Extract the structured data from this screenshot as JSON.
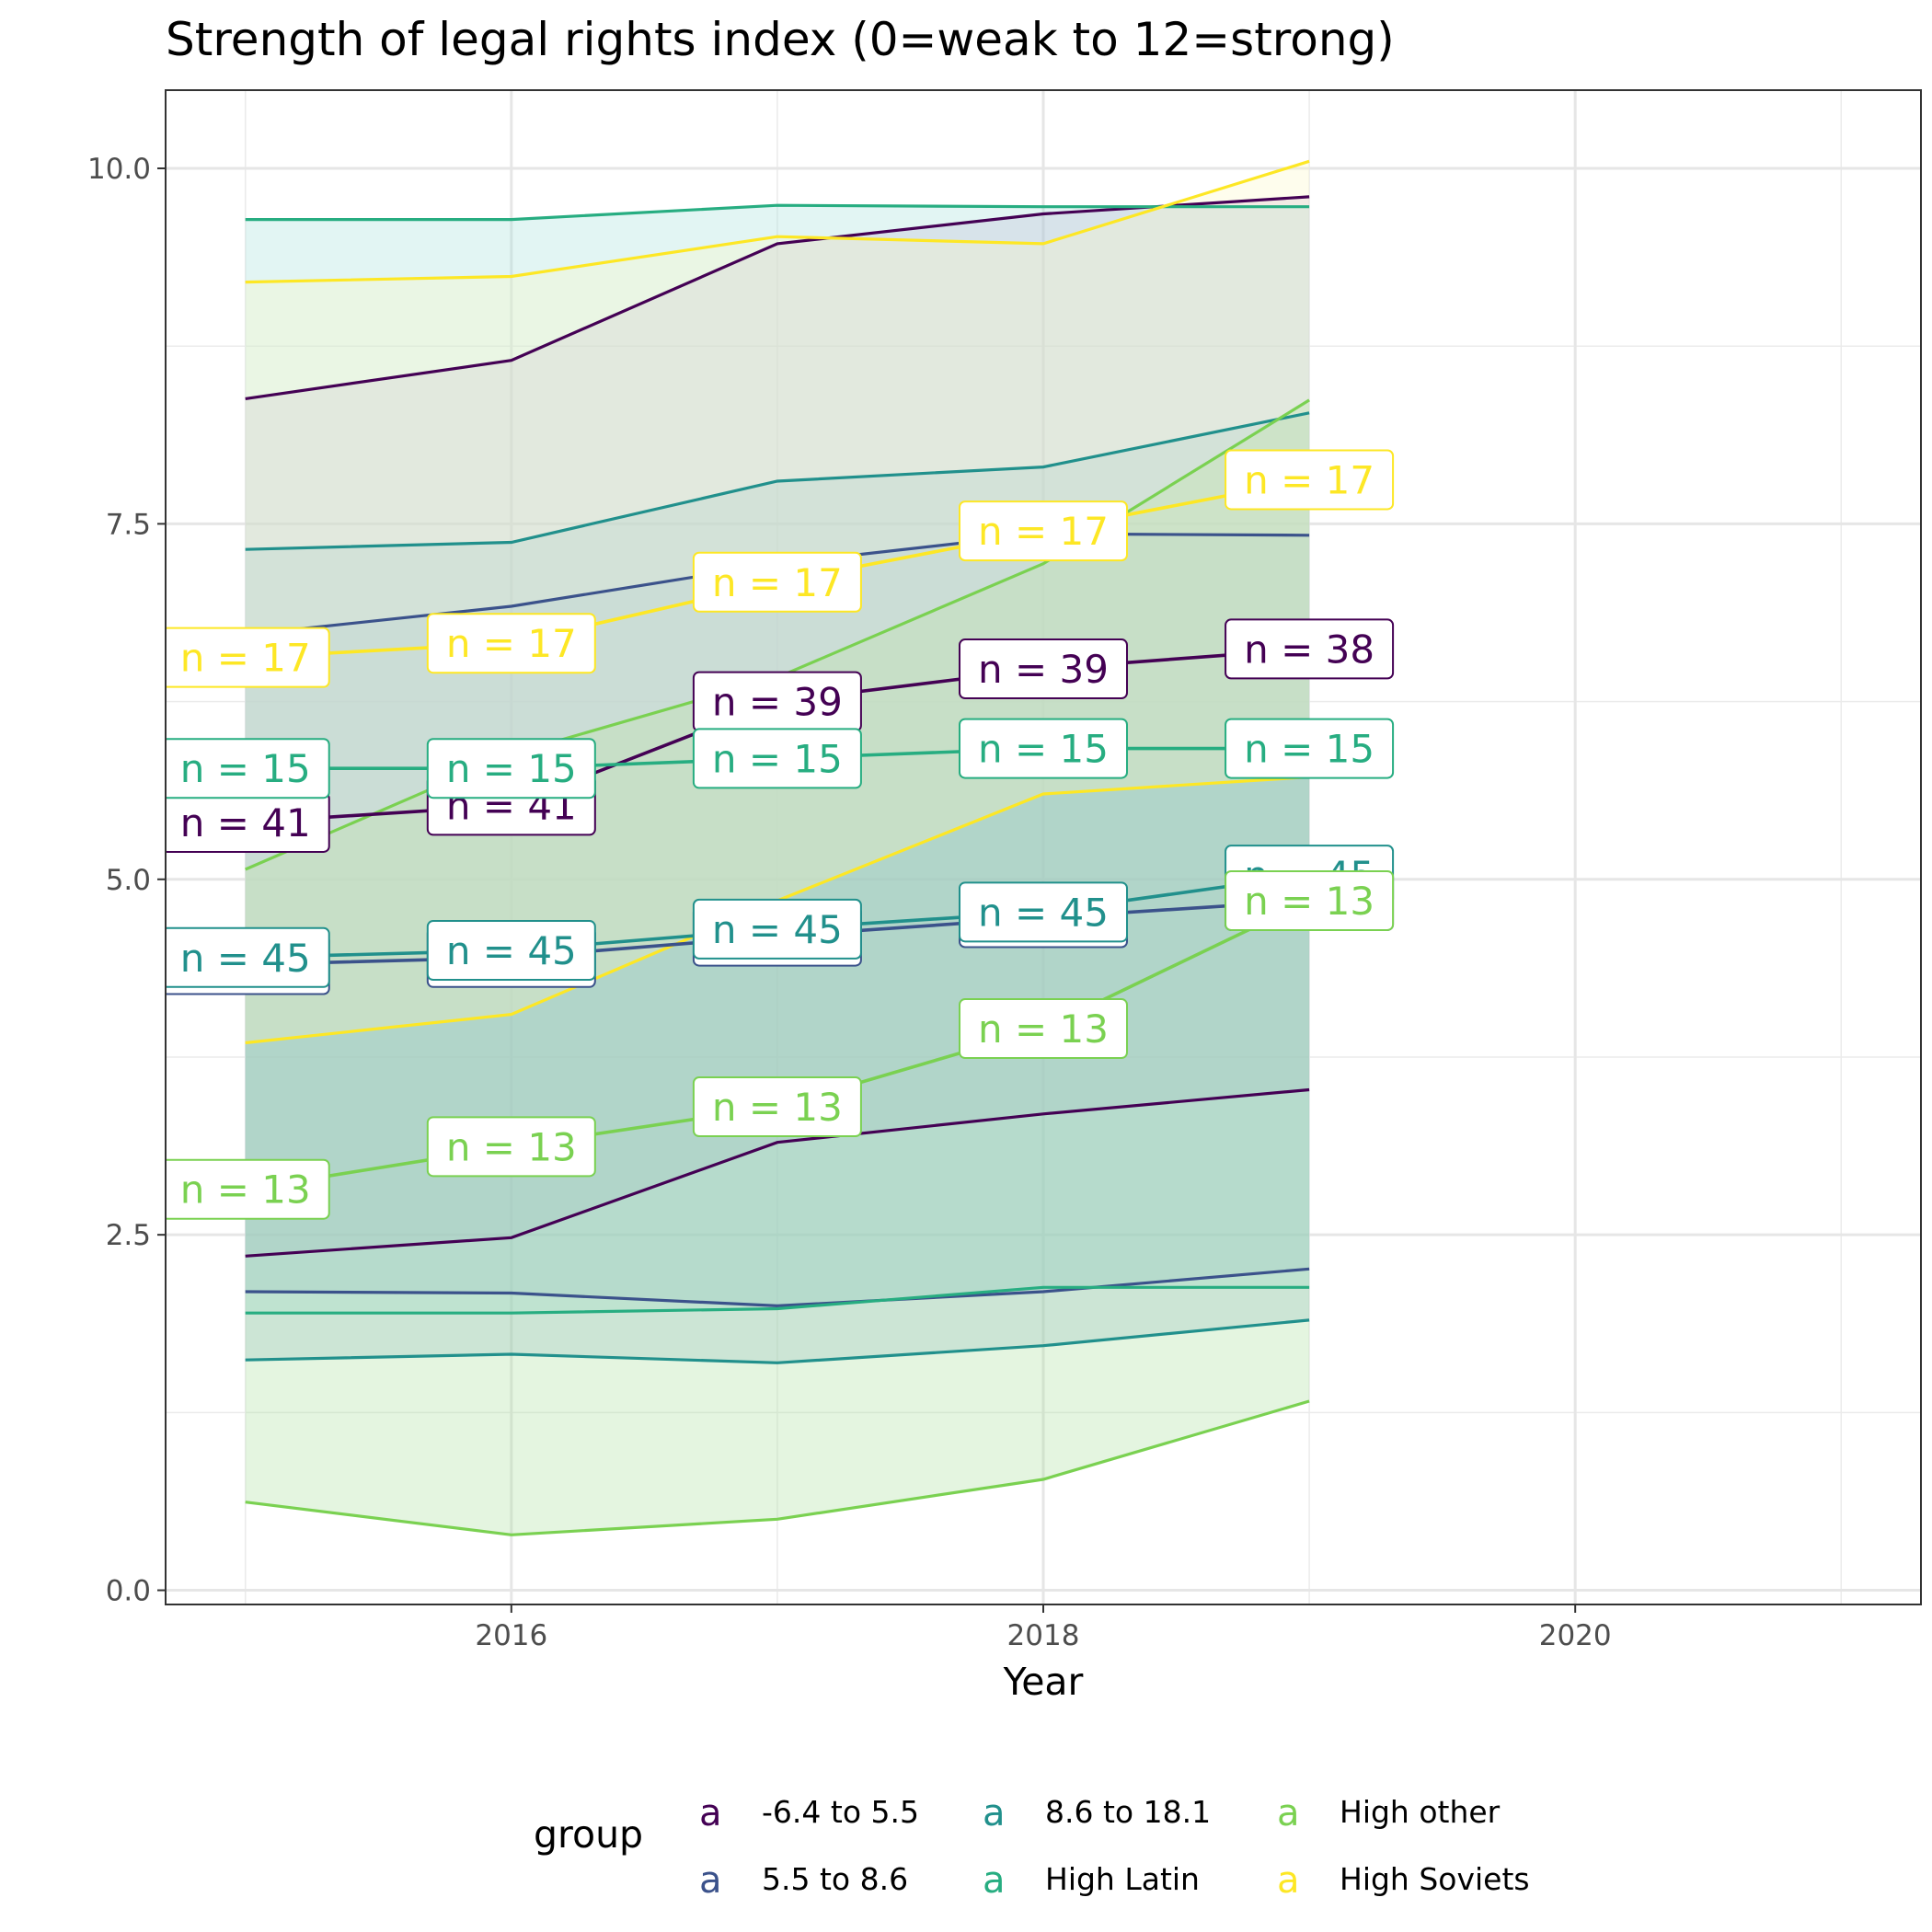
{
  "chart_data": {
    "type": "line",
    "title": "Strength of legal rights index (0=weak to 12=strong)",
    "xlabel": "Year",
    "ylabel": "",
    "xlim": [
      2014.7,
      2021.3
    ],
    "ylim": [
      -0.1,
      10.55
    ],
    "x_ticks": [
      "2016",
      "2018",
      "2020"
    ],
    "y_ticks": [
      "0.0",
      "2.5",
      "5.0",
      "7.5",
      "10.0"
    ],
    "grid": true,
    "legend": {
      "title": "group",
      "position": "bottom",
      "key_glyph": "a"
    },
    "x": [
      2015,
      2016,
      2017,
      2018,
      2019
    ],
    "series": [
      {
        "name": "-6.4 to 5.5",
        "color": "#440154",
        "mean": [
          5.4,
          5.52,
          6.25,
          6.48,
          6.62
        ],
        "lower": [
          2.35,
          2.48,
          3.15,
          3.35,
          3.52
        ],
        "upper": [
          8.38,
          8.65,
          9.47,
          9.68,
          9.8
        ],
        "n": [
          41,
          41,
          39,
          39,
          38
        ],
        "fill": "#c9a8d4"
      },
      {
        "name": "5.5 to 8.6",
        "color": "#3b528b",
        "mean": [
          4.4,
          4.45,
          4.6,
          4.73,
          4.85
        ],
        "lower": [
          2.1,
          2.09,
          2.0,
          2.1,
          2.26
        ],
        "upper": [
          6.72,
          6.92,
          7.22,
          7.43,
          7.42
        ],
        "n": [
          45,
          45,
          45,
          45,
          45
        ],
        "fill": "#a6b4dd"
      },
      {
        "name": "8.6 to 18.1",
        "color": "#21908c",
        "mean": [
          4.45,
          4.5,
          4.65,
          4.77,
          5.03
        ],
        "lower": [
          1.62,
          1.66,
          1.6,
          1.72,
          1.9
        ],
        "upper": [
          7.32,
          7.37,
          7.8,
          7.9,
          8.28
        ],
        "n": [
          45,
          45,
          45,
          45,
          45
        ],
        "fill": "#8fb6c9"
      },
      {
        "name": "High Latin",
        "color": "#27ad81",
        "mean": [
          5.78,
          5.78,
          5.85,
          5.92,
          5.92
        ],
        "lower": [
          1.95,
          1.95,
          1.98,
          2.13,
          2.13
        ],
        "upper": [
          9.64,
          9.64,
          9.74,
          9.73,
          9.73
        ],
        "n": [
          15,
          15,
          15,
          15,
          15
        ],
        "fill": "#9fdfd7"
      },
      {
        "name": "High other",
        "color": "#7ad151",
        "mean": [
          2.82,
          3.12,
          3.4,
          3.95,
          4.85
        ],
        "lower": [
          0.62,
          0.39,
          0.5,
          0.78,
          1.33
        ],
        "upper": [
          5.07,
          5.88,
          6.42,
          7.22,
          8.37
        ],
        "n": [
          13,
          13,
          13,
          13,
          13
        ],
        "fill": "#a6dd98"
      },
      {
        "name": "High Soviets",
        "color": "#fde725",
        "mean": [
          6.56,
          6.66,
          7.09,
          7.45,
          7.81
        ],
        "lower": [
          3.85,
          4.05,
          4.85,
          5.6,
          5.72
        ],
        "upper": [
          9.2,
          9.24,
          9.52,
          9.47,
          10.05
        ],
        "n": [
          17,
          17,
          17,
          17,
          17
        ],
        "fill": "#fdf7c4"
      }
    ]
  }
}
